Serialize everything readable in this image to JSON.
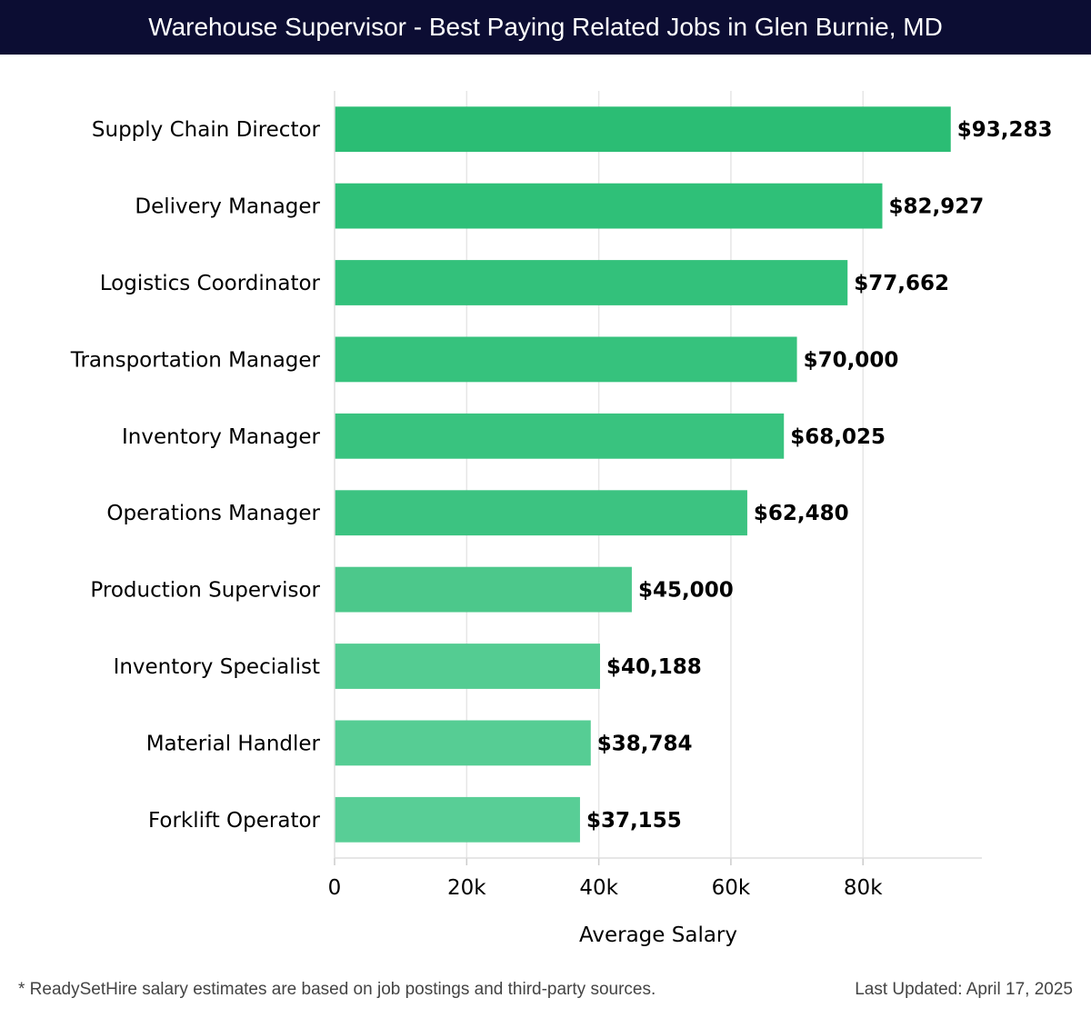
{
  "header": {
    "title": "Warehouse Supervisor - Best Paying Related Jobs in Glen Burnie, MD"
  },
  "chart_data": {
    "type": "bar",
    "orientation": "horizontal",
    "title": "Warehouse Supervisor - Best Paying Related Jobs in Glen Burnie, MD",
    "xlabel": "Average Salary",
    "ylabel": "",
    "xlim": [
      0,
      98000
    ],
    "xticks": [
      0,
      20000,
      40000,
      60000,
      80000
    ],
    "xtick_labels": [
      "0",
      "20k",
      "40k",
      "60k",
      "80k"
    ],
    "grid": "vertical",
    "categories": [
      "Supply Chain Director",
      "Delivery Manager",
      "Logistics Coordinator",
      "Transportation Manager",
      "Inventory Manager",
      "Operations Manager",
      "Production Supervisor",
      "Inventory Specialist",
      "Material Handler",
      "Forklift Operator"
    ],
    "values": [
      93283,
      82927,
      77662,
      70000,
      68025,
      62480,
      45000,
      40188,
      38784,
      37155
    ],
    "value_labels": [
      "$93,283",
      "$82,927",
      "$77,662",
      "$70,000",
      "$68,025",
      "$62,480",
      "$45,000",
      "$40,188",
      "$38,784",
      "$37,155"
    ],
    "colors": [
      "#2bbd74",
      "#2fc078",
      "#33c17b",
      "#36c27d",
      "#39c37f",
      "#3cc381",
      "#4cc88b",
      "#54cc92",
      "#56cd94",
      "#58ce96"
    ]
  },
  "footer": {
    "note": "* ReadySetHire salary estimates are based on job postings and third-party sources.",
    "updated": "Last Updated: April 17, 2025"
  }
}
